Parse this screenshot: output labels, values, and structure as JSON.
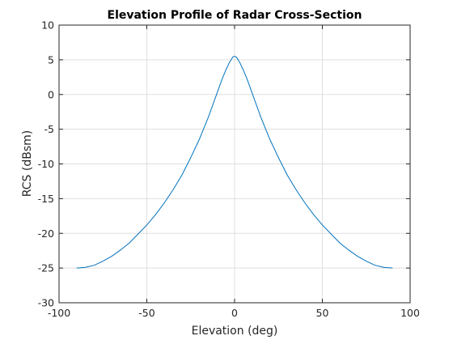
{
  "chart_data": {
    "type": "line",
    "title": "Elevation Profile of Radar Cross-Section",
    "xlabel": "Elevation (deg)",
    "ylabel": "RCS (dBsm)",
    "xlim": [
      -100,
      100
    ],
    "ylim": [
      -30,
      10
    ],
    "xticks": [
      -100,
      -50,
      0,
      50,
      100
    ],
    "yticks": [
      -30,
      -25,
      -20,
      -15,
      -10,
      -5,
      0,
      5,
      10
    ],
    "grid": true,
    "series": [
      {
        "color": "#0072bd",
        "x": [
          -90,
          -85,
          -80,
          -75,
          -70,
          -65,
          -60,
          -55,
          -50,
          -45,
          -40,
          -35,
          -30,
          -25,
          -20,
          -15,
          -10,
          -7,
          -5,
          -3,
          -2,
          -1,
          0,
          1,
          2,
          3,
          5,
          7,
          10,
          15,
          20,
          25,
          30,
          35,
          40,
          45,
          50,
          55,
          60,
          65,
          70,
          75,
          80,
          85,
          90
        ],
        "y": [
          -25.0,
          -24.9,
          -24.6,
          -24.0,
          -23.3,
          -22.4,
          -21.4,
          -20.1,
          -18.8,
          -17.3,
          -15.6,
          -13.7,
          -11.6,
          -9.1,
          -6.4,
          -3.3,
          0.2,
          2.3,
          3.5,
          4.6,
          5.0,
          5.4,
          5.5,
          5.4,
          5.0,
          4.6,
          3.5,
          2.3,
          0.2,
          -3.3,
          -6.4,
          -9.1,
          -11.6,
          -13.7,
          -15.6,
          -17.3,
          -18.8,
          -20.1,
          -21.4,
          -22.4,
          -23.3,
          -24.0,
          -24.6,
          -24.9,
          -25.0
        ]
      }
    ]
  }
}
